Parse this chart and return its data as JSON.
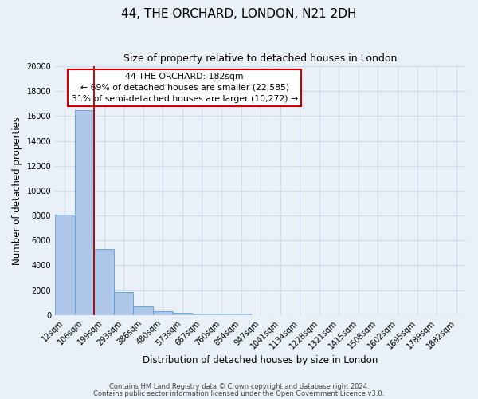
{
  "title": "44, THE ORCHARD, LONDON, N21 2DH",
  "subtitle": "Size of property relative to detached houses in London",
  "xlabel": "Distribution of detached houses by size in London",
  "ylabel": "Number of detached properties",
  "bar_labels": [
    "12sqm",
    "106sqm",
    "199sqm",
    "293sqm",
    "386sqm",
    "480sqm",
    "573sqm",
    "667sqm",
    "760sqm",
    "854sqm",
    "947sqm",
    "1041sqm",
    "1134sqm",
    "1228sqm",
    "1321sqm",
    "1415sqm",
    "1508sqm",
    "1602sqm",
    "1695sqm",
    "1789sqm",
    "1882sqm"
  ],
  "bar_values": [
    8100,
    16500,
    5300,
    1850,
    700,
    300,
    200,
    150,
    120,
    100,
    0,
    0,
    0,
    0,
    0,
    0,
    0,
    0,
    0,
    0,
    0
  ],
  "bar_color": "#aec6e8",
  "bar_edge_color": "#5a9fd4",
  "marker_label": "44 THE ORCHARD: 182sqm",
  "annotation_line1": "← 69% of detached houses are smaller (22,585)",
  "annotation_line2": "31% of semi-detached houses are larger (10,272) →",
  "red_line_x": 1.5,
  "ylim": [
    0,
    20000
  ],
  "yticks": [
    0,
    2000,
    4000,
    6000,
    8000,
    10000,
    12000,
    14000,
    16000,
    18000,
    20000
  ],
  "background_color": "#eaf0f8",
  "plot_bg_color": "#eaf0f8",
  "grid_color": "#d0dce8",
  "footer_line1": "Contains HM Land Registry data © Crown copyright and database right 2024.",
  "footer_line2": "Contains public sector information licensed under the Open Government Licence v3.0.",
  "box_facecolor": "#ffffff",
  "box_edgecolor": "#cc0000",
  "title_fontsize": 11,
  "subtitle_fontsize": 9,
  "tick_fontsize": 7,
  "ylabel_fontsize": 8.5,
  "xlabel_fontsize": 8.5,
  "annotation_fontsize": 7.8
}
